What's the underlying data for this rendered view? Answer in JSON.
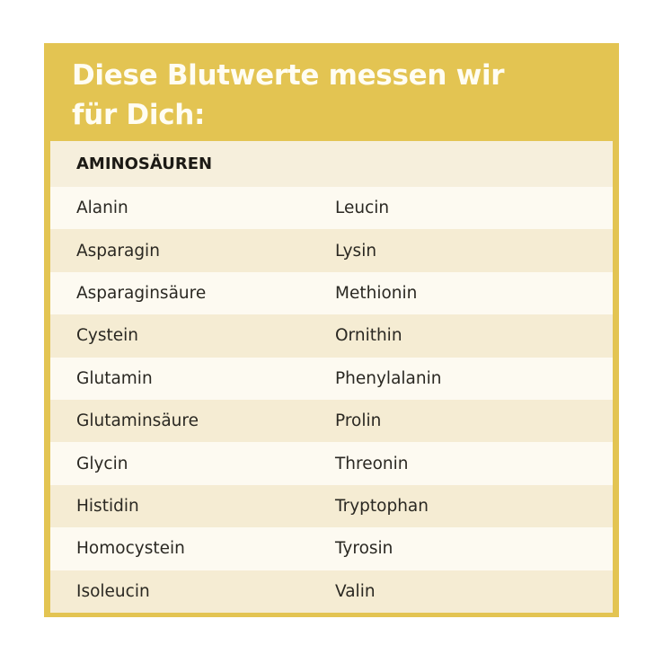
{
  "title_line1": "Diese Blutwerte messen wir",
  "title_line2": "für Dich:",
  "section_header": "AMINOSÄUREN",
  "rows": [
    [
      "Alanin",
      "Leucin"
    ],
    [
      "Asparagin",
      "Lysin"
    ],
    [
      "Asparaginsäure",
      "Methionin"
    ],
    [
      "Cystein",
      "Ornithin"
    ],
    [
      "Glutamin",
      "Phenylalanin"
    ],
    [
      "Glutaminsäure",
      "Prolin"
    ],
    [
      "Glycin",
      "Threonin"
    ],
    [
      "Histidin",
      "Tryptophan"
    ],
    [
      "Homocystein",
      "Tyrosin"
    ],
    [
      "Isoleucin",
      "Valin"
    ]
  ],
  "colors": {
    "frame": "#e3c452",
    "header_row": "#f6efdc",
    "row_light": "#fdfaf1",
    "row_dark": "#f5ecd3"
  }
}
